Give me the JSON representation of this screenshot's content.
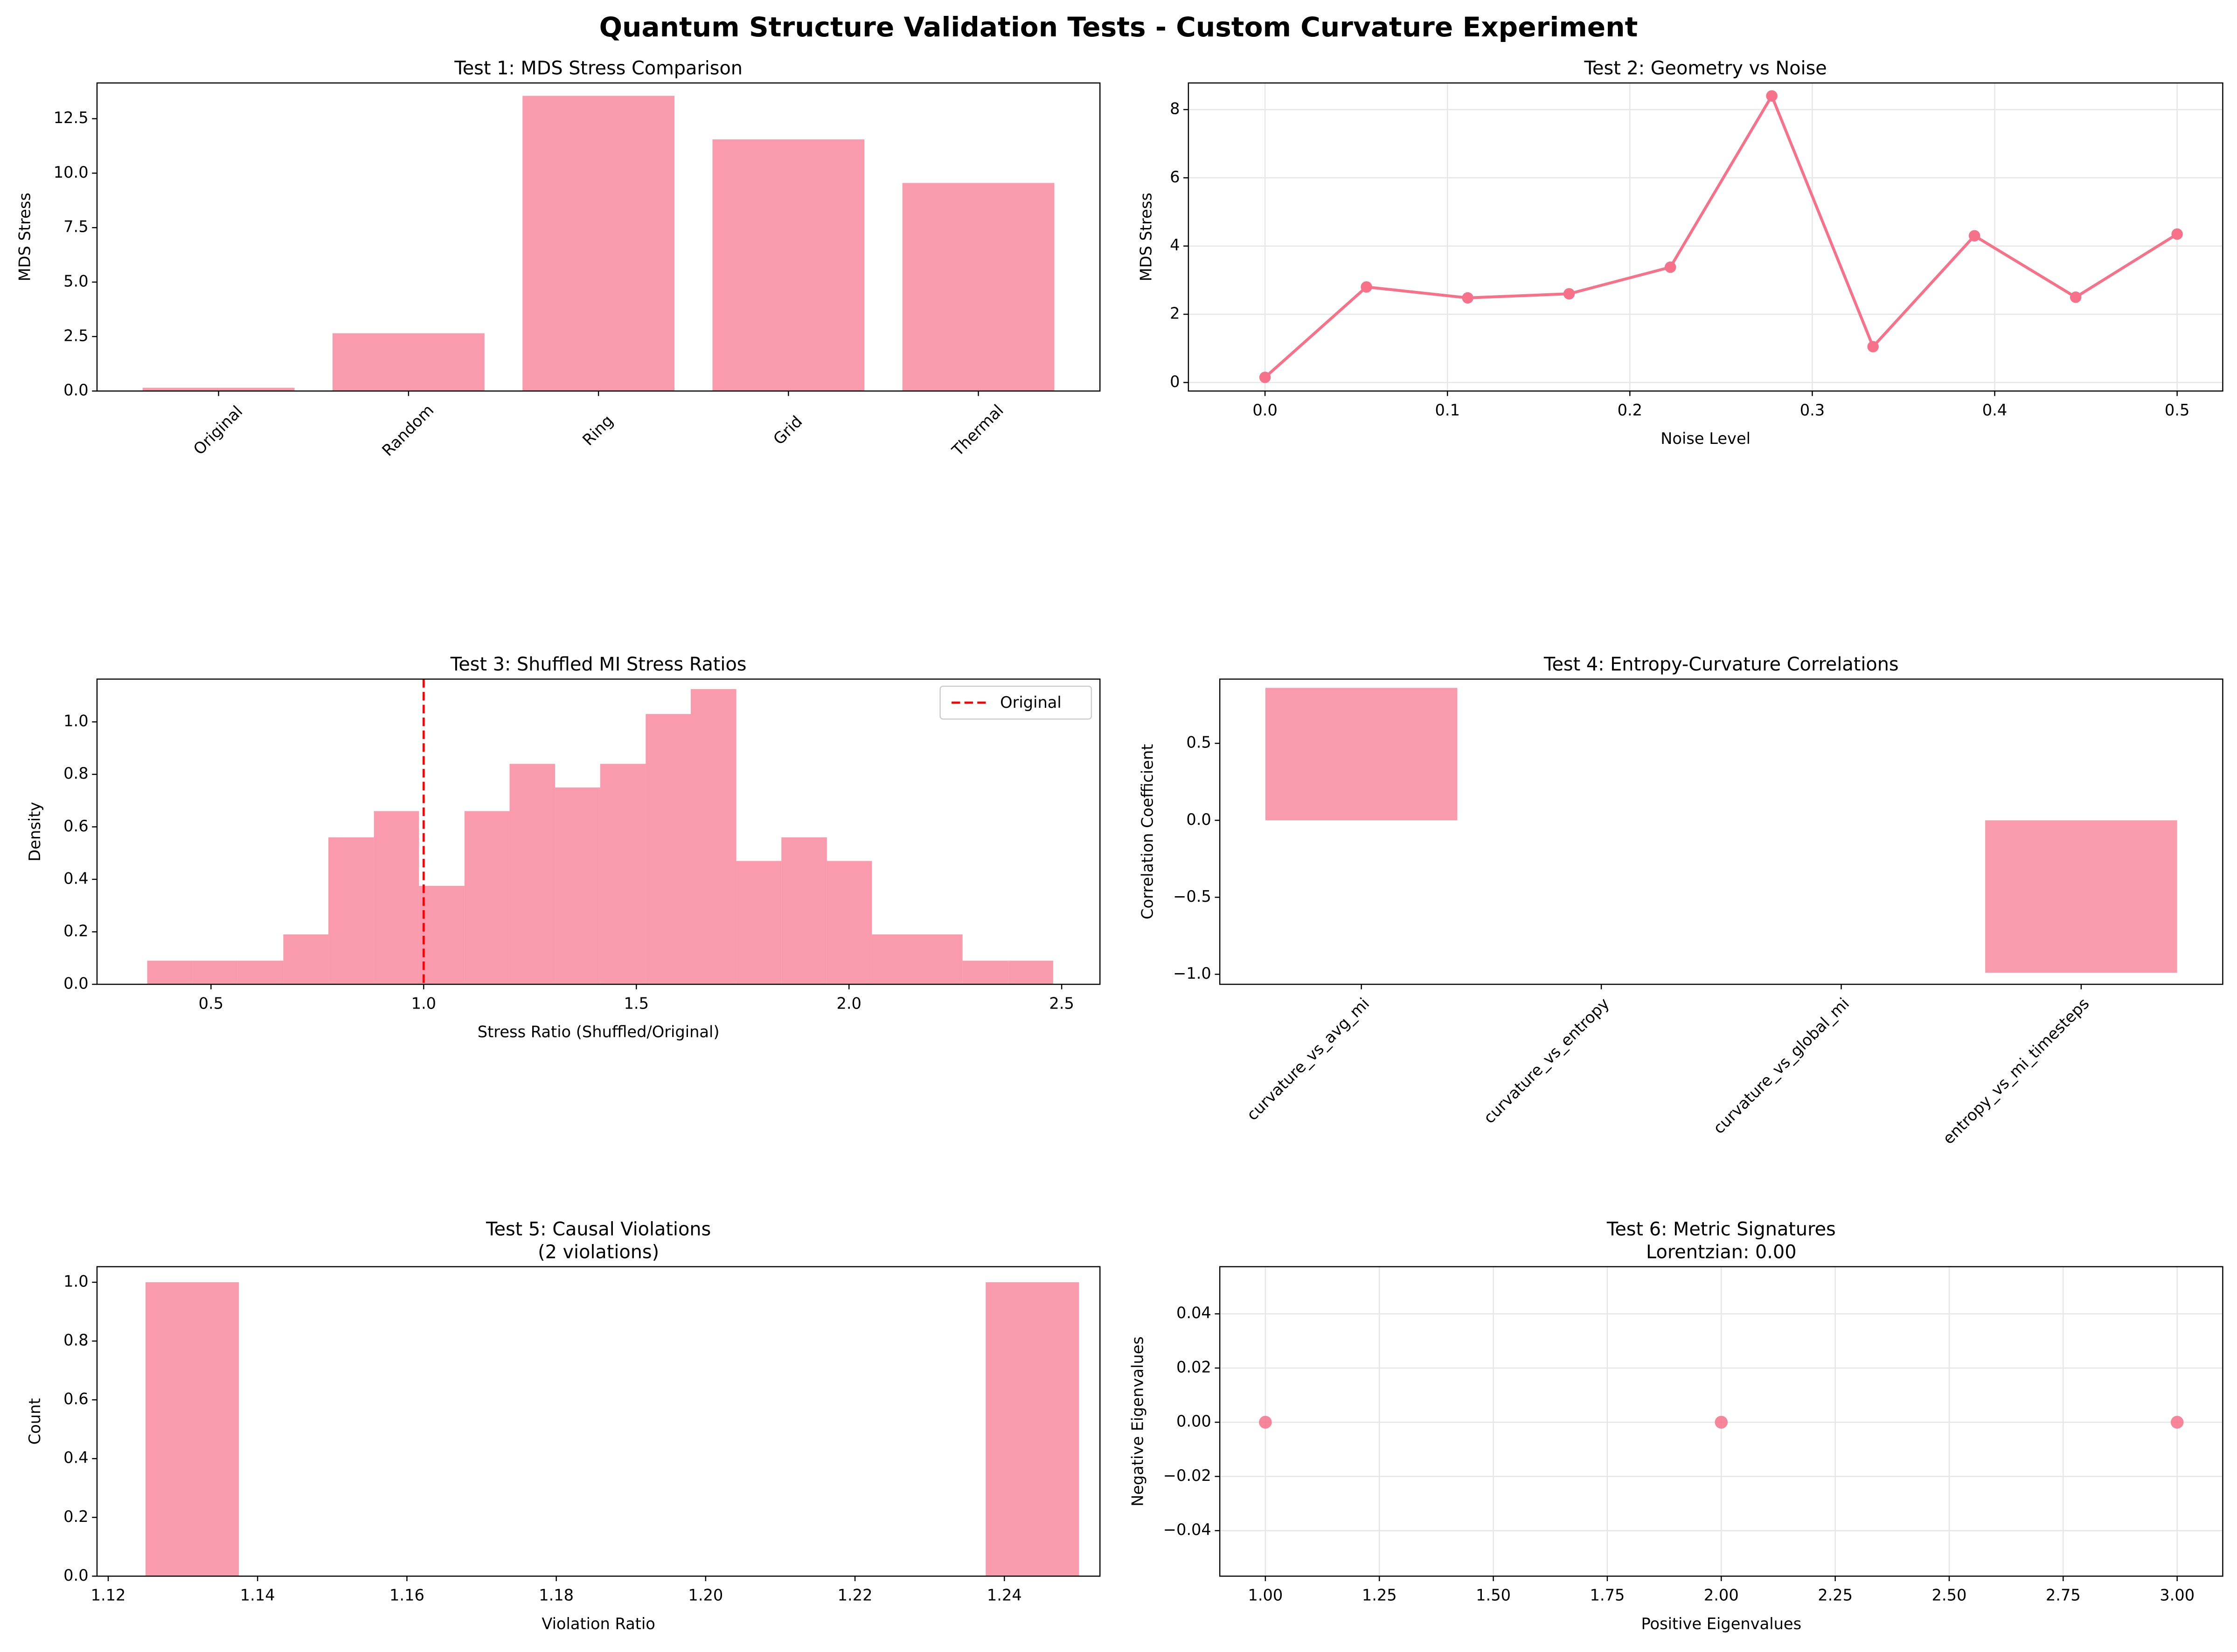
{
  "title": "Quantum Structure Validation Tests - Custom Curvature Experiment",
  "chart_data": [
    {
      "type": "bar",
      "title": "Test 1: MDS Stress Comparison",
      "ylabel": "MDS Stress",
      "categories": [
        "Original",
        "Random",
        "Ring",
        "Grid",
        "Thermal"
      ],
      "values": [
        0.15,
        2.65,
        13.55,
        11.55,
        9.55
      ],
      "color": "#f77189",
      "alpha": 0.7,
      "ylim": [
        0,
        14.14
      ],
      "yticks": [
        {
          "value": 0,
          "label": "0.0"
        },
        2.5,
        {
          "value": 5,
          "label": "5.0"
        },
        7.5,
        {
          "value": 10,
          "label": "10.0"
        },
        12.5
      ],
      "xtick_rotation": 45,
      "xtick_align": "center",
      "grid": false
    },
    {
      "type": "line",
      "title": "Test 2: Geometry vs Noise",
      "xlabel": "Noise Level",
      "ylabel": "MDS Stress",
      "x": [
        0,
        0.0556,
        0.1111,
        0.1667,
        0.2222,
        0.2778,
        0.3333,
        0.3889,
        0.4444,
        0.5
      ],
      "values": [
        0.15,
        2.8,
        2.48,
        2.6,
        3.38,
        8.4,
        1.05,
        4.3,
        2.5,
        4.35
      ],
      "color": "#f77189",
      "xlim": [
        -0.042,
        0.525
      ],
      "xticks": [
        {
          "value": 0,
          "label": "0.0"
        },
        0.1,
        0.2,
        0.3,
        0.4,
        0.5
      ],
      "ylim": [
        -0.25,
        8.78
      ],
      "yticks": [
        0,
        2,
        4,
        6,
        8
      ],
      "grid": true
    },
    {
      "type": "histogram",
      "title": "Test 3: Shuffled MI Stress Ratios",
      "xlabel": "Stress Ratio (Shuffled/Original)",
      "ylabel": "Density",
      "bins": [
        0.35,
        0.457,
        0.563,
        0.67,
        0.776,
        0.883,
        0.989,
        1.096,
        1.202,
        1.309,
        1.415,
        1.522,
        1.628,
        1.735,
        1.841,
        1.948,
        2.054,
        2.161,
        2.267,
        2.374,
        2.48
      ],
      "values": [
        0.09,
        0.09,
        0.09,
        0.19,
        0.56,
        0.66,
        0.375,
        0.66,
        0.84,
        0.75,
        0.84,
        1.03,
        1.125,
        0.47,
        0.56,
        0.47,
        0.19,
        0.19,
        0.09,
        0.09
      ],
      "color": "#f77189",
      "alpha": 0.7,
      "xlim": [
        0.232,
        2.59
      ],
      "xticks": [
        0.5,
        {
          "value": 1,
          "label": "1.0"
        },
        1.5,
        {
          "value": 2,
          "label": "2.0"
        },
        2.5
      ],
      "ylim": [
        0,
        1.163
      ],
      "yticks": [
        {
          "value": 0,
          "label": "0.0"
        },
        0.2,
        0.4,
        0.6,
        0.8,
        {
          "value": 1,
          "label": "1.0"
        }
      ],
      "reference_line": {
        "x": 1.0,
        "name": "Original",
        "color": "#ff0000",
        "style": "dashed"
      },
      "legend": "upper right",
      "grid": false
    },
    {
      "type": "bar",
      "title": "Test 4: Entropy-Curvature Correlations",
      "ylabel": "Correlation Coefficient",
      "categories": [
        "curvature_vs_avg_mi",
        "curvature_vs_entropy",
        "curvature_vs_global_mi",
        "entropy_vs_mi_timesteps"
      ],
      "values": [
        0.86,
        null,
        null,
        -0.99
      ],
      "color": "#f77189",
      "alpha": 0.7,
      "ylim": [
        -1.065,
        0.917
      ],
      "yticks": [
        {
          "value": -1,
          "label": "−1.0"
        },
        {
          "value": -0.5,
          "label": "−0.5"
        },
        {
          "value": 0,
          "label": "0.0"
        },
        0.5
      ],
      "xtick_rotation": 45,
      "xtick_align": "right",
      "grid": false
    },
    {
      "type": "histogram",
      "title": [
        "Test 5: Causal Violations",
        "(2 violations)"
      ],
      "xlabel": "Violation Ratio",
      "ylabel": "Count",
      "bins": [
        1.125,
        1.1375,
        1.15,
        1.1625,
        1.175,
        1.1875,
        1.2,
        1.2125,
        1.225,
        1.2375,
        1.25
      ],
      "values": [
        1,
        0,
        0,
        0,
        0,
        0,
        0,
        0,
        0,
        1
      ],
      "color": "#f77189",
      "alpha": 0.7,
      "xlim": [
        1.1185,
        1.2528
      ],
      "xticks": [
        1.12,
        1.14,
        1.16,
        1.18,
        {
          "value": 1.2,
          "label": "1.20"
        },
        1.22,
        1.24
      ],
      "ylim": [
        0,
        1.053
      ],
      "yticks": [
        {
          "value": 0,
          "label": "0.0"
        },
        0.2,
        0.4,
        0.6,
        0.8,
        {
          "value": 1,
          "label": "1.0"
        }
      ],
      "grid": false
    },
    {
      "type": "scatter",
      "title": [
        "Test 6: Metric Signatures",
        "Lorentzian: 0.00"
      ],
      "xlabel": "Positive Eigenvalues",
      "ylabel": "Negative Eigenvalues",
      "x": [
        1,
        2,
        3
      ],
      "values": [
        0,
        0,
        0
      ],
      "color": "#f77189",
      "alpha": 0.85,
      "xlim": [
        0.9,
        3.1
      ],
      "xticks": [
        {
          "value": 1,
          "label": "1.00"
        },
        1.25,
        {
          "value": 1.5,
          "label": "1.50"
        },
        1.75,
        {
          "value": 2,
          "label": "2.00"
        },
        2.25,
        {
          "value": 2.5,
          "label": "2.50"
        },
        2.75,
        {
          "value": 3,
          "label": "3.00"
        }
      ],
      "ylim": [
        -0.0568,
        0.0574
      ],
      "yticks": [
        {
          "value": -0.04,
          "label": "−0.04"
        },
        {
          "value": -0.02,
          "label": "−0.02"
        },
        {
          "value": 0,
          "label": "0.00"
        },
        0.02,
        0.04
      ],
      "grid": true
    }
  ]
}
